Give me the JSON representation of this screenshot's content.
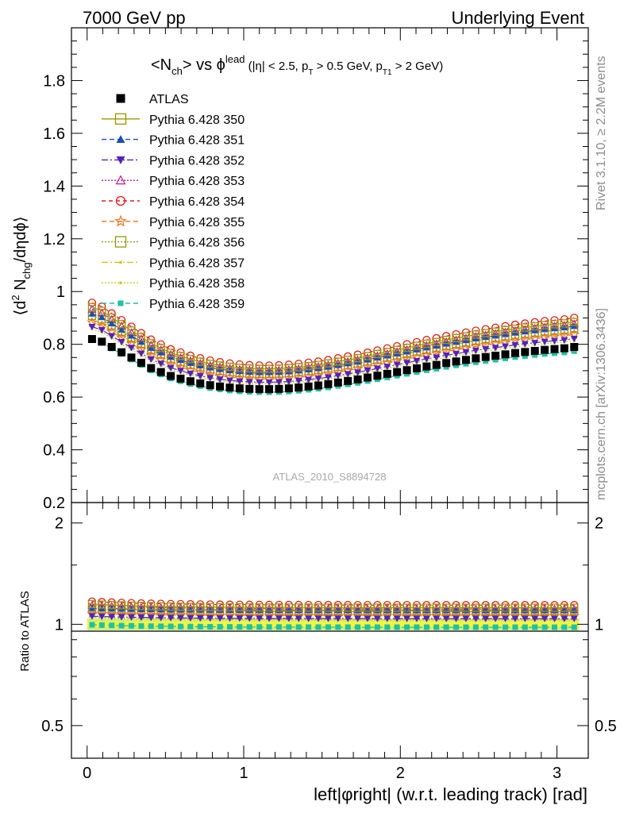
{
  "header": {
    "left": "7000 GeV pp",
    "right": "Underlying Event"
  },
  "side_labels": {
    "rivet": "Rivet 3.1.10, ≥ 2.2M events",
    "mcplots": "mcplots.cern.ch [arXiv:1306.3436]"
  },
  "chart_data": [
    {
      "type": "scatter",
      "panel": "main",
      "title": "<Nch> vs φlead (|η| < 2.5, pT > 0.5 GeV, pT1 > 2 GeV)",
      "ylabel": "⟨d² Nchg/dηdφ⟩",
      "annotation": "ATLAS_2010_S8894728",
      "xlim": [
        -0.1,
        3.2
      ],
      "ylim": [
        0.2,
        2.0
      ],
      "y_ticks": [
        "0.2",
        "0.4",
        "0.6",
        "0.8",
        "1",
        "1.2",
        "1.4",
        "1.6",
        "1.8"
      ],
      "legend_position": "top-left",
      "x": [
        0.0314,
        0.0942,
        0.157,
        0.2199,
        0.2827,
        0.3456,
        0.4084,
        0.4712,
        0.5341,
        0.5969,
        0.6597,
        0.7226,
        0.7854,
        0.8482,
        0.9111,
        0.9739,
        1.0367,
        1.0996,
        1.1624,
        1.2252,
        1.2881,
        1.3509,
        1.4137,
        1.4765,
        1.5394,
        1.6022,
        1.665,
        1.7279,
        1.7907,
        1.8535,
        1.9164,
        1.9792,
        2.042,
        2.1049,
        2.1677,
        2.2305,
        2.2934,
        2.3562,
        2.419,
        2.4819,
        2.5447,
        2.6075,
        2.6704,
        2.7332,
        2.796,
        2.8589,
        2.9217,
        2.9845,
        3.0473,
        3.1102
      ],
      "series": [
        {
          "name": "ATLAS",
          "color": "#000000",
          "marker": "filled-square",
          "dash": "none",
          "values": [
            0.82,
            0.81,
            0.79,
            0.77,
            0.75,
            0.73,
            0.71,
            0.695,
            0.68,
            0.67,
            0.66,
            0.652,
            0.645,
            0.64,
            0.636,
            0.633,
            0.631,
            0.63,
            0.63,
            0.631,
            0.633,
            0.636,
            0.64,
            0.644,
            0.649,
            0.655,
            0.661,
            0.667,
            0.674,
            0.681,
            0.688,
            0.695,
            0.702,
            0.709,
            0.716,
            0.722,
            0.729,
            0.735,
            0.741,
            0.747,
            0.752,
            0.757,
            0.762,
            0.767,
            0.771,
            0.775,
            0.779,
            0.782,
            0.785,
            0.79
          ]
        },
        {
          "name": "Pythia 6.428 350",
          "color": "#999900",
          "marker": "open-square",
          "dash": "solid",
          "ratio_offset": 0.12
        },
        {
          "name": "Pythia 6.428 351",
          "color": "#1a4fb5",
          "marker": "filled-triangle-up",
          "dash": "6,4",
          "ratio_offset": 0.1
        },
        {
          "name": "Pythia 6.428 352",
          "color": "#5022c0",
          "marker": "filled-triangle-down",
          "dash": "8,3,2,3",
          "ratio_offset": 0.04
        },
        {
          "name": "Pythia 6.428 353",
          "color": "#c01c8c",
          "marker": "open-triangle-up",
          "dash": "2,2",
          "ratio_offset": 0.11
        },
        {
          "name": "Pythia 6.428 354",
          "color": "#e41a1c",
          "marker": "open-circle",
          "dash": "5,4",
          "ratio_offset": 0.14
        },
        {
          "name": "Pythia 6.428 355",
          "color": "#f07020",
          "marker": "open-star",
          "dash": "6,4",
          "ratio_offset": 0.06
        },
        {
          "name": "Pythia 6.428 356",
          "color": "#8a9a10",
          "marker": "open-square",
          "dash": "2,2",
          "ratio_offset": 0.09
        },
        {
          "name": "Pythia 6.428 357",
          "color": "#d8c020",
          "marker": "small-dot",
          "dash": "8,3,2,3",
          "ratio_offset": 0.07
        },
        {
          "name": "Pythia 6.428 358",
          "color": "#b8d020",
          "marker": "small-dot",
          "dash": "2,2",
          "ratio_offset": 0.03
        },
        {
          "name": "Pythia 6.428 359",
          "color": "#20c0a0",
          "marker": "filled-square-small",
          "dash": "6,4",
          "ratio_offset": -0.02
        }
      ]
    },
    {
      "type": "scatter",
      "panel": "ratio",
      "ylabel": "Ratio to ATLAS",
      "xlabel": "left|φright| (w.r.t. leading track) [rad]",
      "ylim": [
        0.4,
        2.3
      ],
      "scale": "log",
      "y_ticks": [
        "0.5",
        "1",
        "2"
      ],
      "x_ticks": [
        "0",
        "1",
        "2",
        "3"
      ],
      "reference": 1.0,
      "band": {
        "inner": 0.02,
        "outer": 0.04,
        "inner_color": "#f5f540",
        "outer_color": "#c8f07a"
      }
    }
  ]
}
